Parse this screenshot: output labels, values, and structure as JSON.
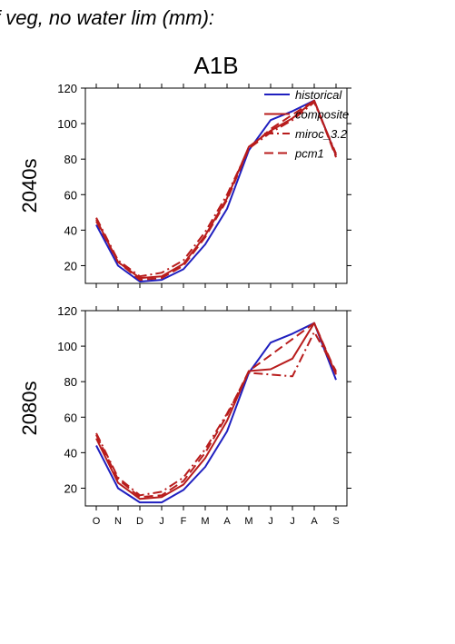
{
  "figure": {
    "top_title": "f veg, no water lim (mm):",
    "scenario_title": "A1B"
  },
  "chart_data": [
    {
      "type": "line",
      "panel_label": "2040s",
      "categories": [
        "O",
        "N",
        "D",
        "J",
        "F",
        "M",
        "A",
        "M",
        "J",
        "J",
        "A",
        "S"
      ],
      "ylim": [
        10,
        120
      ],
      "yticks": [
        20,
        40,
        60,
        80,
        100,
        120
      ],
      "legend_position": "top-right",
      "legend": [
        "historical",
        "composite",
        "miroc_3.2",
        "pcm1"
      ],
      "series": [
        {
          "name": "historical",
          "color": "#1f1fbf",
          "dash": "solid",
          "values": [
            43,
            20,
            11,
            12,
            18,
            32,
            52,
            85,
            102,
            107,
            113,
            82
          ]
        },
        {
          "name": "composite",
          "color": "#b81c1c",
          "dash": "solid",
          "values": [
            46,
            22,
            13,
            14,
            21,
            37,
            58,
            87,
            96,
            103,
            113,
            82
          ]
        },
        {
          "name": "miroc_3.2",
          "color": "#b81c1c",
          "dash": "dashdot",
          "values": [
            47,
            23,
            14,
            16,
            23,
            39,
            60,
            86,
            95,
            102,
            112,
            83
          ]
        },
        {
          "name": "pcm1",
          "color": "#b81c1c",
          "dash": "dashed",
          "values": [
            45,
            22,
            12,
            13,
            20,
            36,
            57,
            86,
            97,
            105,
            113,
            81
          ]
        }
      ]
    },
    {
      "type": "line",
      "panel_label": "2080s",
      "categories": [
        "O",
        "N",
        "D",
        "J",
        "F",
        "M",
        "A",
        "M",
        "J",
        "J",
        "A",
        "S"
      ],
      "ylim": [
        10,
        120
      ],
      "yticks": [
        20,
        40,
        60,
        80,
        100,
        120
      ],
      "series": [
        {
          "name": "historical",
          "color": "#1f1fbf",
          "dash": "solid",
          "values": [
            44,
            20,
            12,
            12,
            19,
            32,
            52,
            85,
            102,
            107,
            113,
            81
          ]
        },
        {
          "name": "composite",
          "color": "#b81c1c",
          "dash": "solid",
          "values": [
            48,
            23,
            14,
            15,
            22,
            37,
            58,
            86,
            87,
            93,
            113,
            84
          ]
        },
        {
          "name": "miroc_3.2",
          "color": "#b81c1c",
          "dash": "dashdot",
          "values": [
            51,
            26,
            16,
            18,
            26,
            42,
            62,
            85,
            84,
            83,
            108,
            86
          ]
        },
        {
          "name": "pcm1",
          "color": "#b81c1c",
          "dash": "dashed",
          "values": [
            50,
            25,
            15,
            16,
            24,
            40,
            61,
            86,
            95,
            104,
            113,
            85
          ]
        }
      ]
    }
  ]
}
